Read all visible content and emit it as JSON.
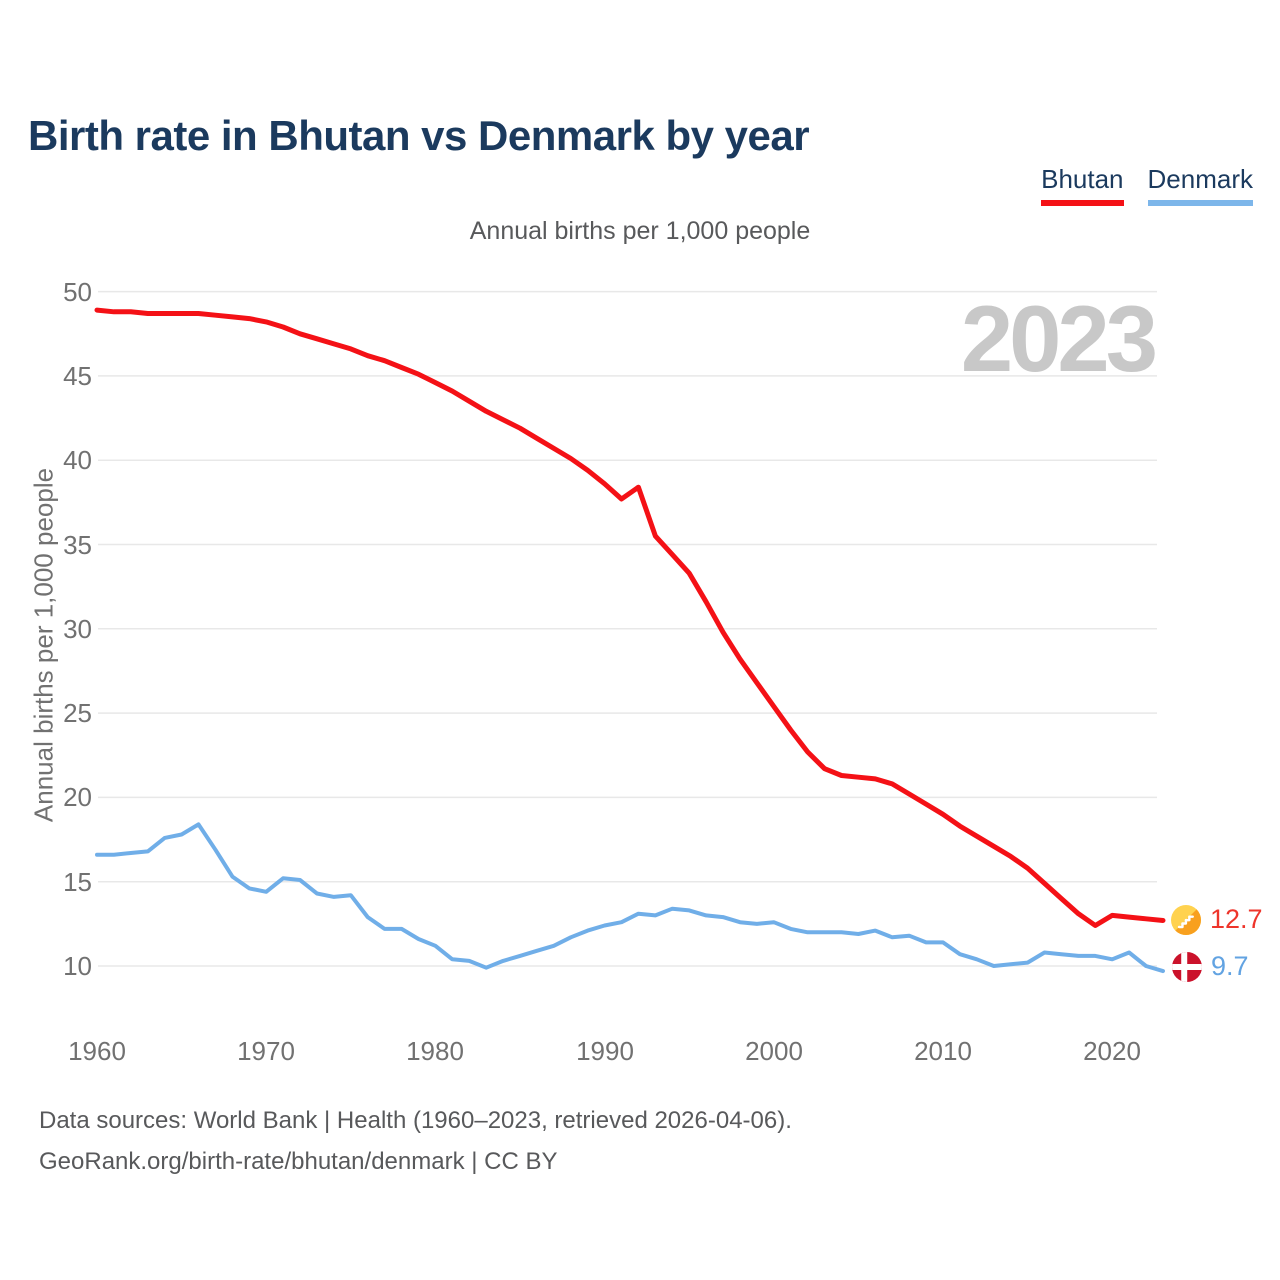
{
  "title": "Birth rate in Bhutan vs Denmark by year",
  "subtitle": "Annual births per 1,000 people",
  "watermark": "2023",
  "legend": [
    {
      "label": "Bhutan",
      "color": "#f41116"
    },
    {
      "label": "Denmark",
      "color": "#7db6ea"
    }
  ],
  "y_axis": {
    "title": "Annual births per 1,000 people",
    "ticks": [
      50,
      45,
      40,
      35,
      30,
      25,
      20,
      15,
      10
    ],
    "min": 10,
    "max": 50
  },
  "x_axis": {
    "ticks": [
      1960,
      1970,
      1980,
      1990,
      2000,
      2010,
      2020
    ],
    "min": 1960,
    "max": 2023
  },
  "end_labels": [
    {
      "series": "Bhutan",
      "value": "12.7",
      "color": "#ee352b",
      "icon": "bhutan-flag-icon"
    },
    {
      "series": "Denmark",
      "value": "9.7",
      "color": "#62a3e2",
      "icon": "denmark-flag-icon"
    }
  ],
  "footer": {
    "line1": "Data sources: World Bank | Health (1960–2023, retrieved 2026-04-06).",
    "line2": "GeoRank.org/birth-rate/bhutan/denmark | CC BY"
  },
  "colors": {
    "bhutan_line": "#f41116",
    "denmark_line": "#70aee8",
    "grid": "#e8e8e8",
    "title_navy": "#1b3a5e",
    "axis_gray": "#717171",
    "flag_red": "#cb122b",
    "flag_yellow": "#ffd24f",
    "flag_orange": "#f8a01e"
  },
  "chart_data": {
    "type": "line",
    "title": "Annual births per 1,000 people",
    "xlabel": "",
    "ylabel": "Annual births per 1,000 people",
    "ylim": [
      10,
      50
    ],
    "xlim": [
      1960,
      2023
    ],
    "grid": true,
    "legend_position": "top-right",
    "x": [
      1960,
      1961,
      1962,
      1963,
      1964,
      1965,
      1966,
      1967,
      1968,
      1969,
      1970,
      1971,
      1972,
      1973,
      1974,
      1975,
      1976,
      1977,
      1978,
      1979,
      1980,
      1981,
      1982,
      1983,
      1984,
      1985,
      1986,
      1987,
      1988,
      1989,
      1990,
      1991,
      1992,
      1993,
      1994,
      1995,
      1996,
      1997,
      1998,
      1999,
      2000,
      2001,
      2002,
      2003,
      2004,
      2005,
      2006,
      2007,
      2008,
      2009,
      2010,
      2011,
      2012,
      2013,
      2014,
      2015,
      2016,
      2017,
      2018,
      2019,
      2020,
      2021,
      2022,
      2023
    ],
    "series": [
      {
        "name": "Bhutan",
        "color": "#f41116",
        "values": [
          48.9,
          48.8,
          48.8,
          48.7,
          48.7,
          48.7,
          48.7,
          48.6,
          48.5,
          48.4,
          48.2,
          47.9,
          47.5,
          47.2,
          46.9,
          46.6,
          46.2,
          45.9,
          45.5,
          45.1,
          44.6,
          44.1,
          43.5,
          42.9,
          42.4,
          41.9,
          41.3,
          40.7,
          40.1,
          39.4,
          38.6,
          37.7,
          38.4,
          35.5,
          34.4,
          33.3,
          31.6,
          29.8,
          28.2,
          26.8,
          25.4,
          24.0,
          22.7,
          21.7,
          21.3,
          21.2,
          21.1,
          20.8,
          20.2,
          19.6,
          19.0,
          18.3,
          17.7,
          17.1,
          16.5,
          15.8,
          14.9,
          14.0,
          13.1,
          12.4,
          13.0,
          12.9,
          12.8,
          12.7
        ]
      },
      {
        "name": "Denmark",
        "color": "#70aee8",
        "values": [
          16.6,
          16.6,
          16.7,
          16.8,
          17.6,
          17.8,
          18.4,
          16.9,
          15.3,
          14.6,
          14.4,
          15.2,
          15.1,
          14.3,
          14.1,
          14.2,
          12.9,
          12.2,
          12.2,
          11.6,
          11.2,
          10.4,
          10.3,
          9.9,
          10.3,
          10.6,
          10.9,
          11.2,
          11.7,
          12.1,
          12.4,
          12.6,
          13.1,
          13.0,
          13.4,
          13.3,
          13.0,
          12.9,
          12.6,
          12.5,
          12.6,
          12.2,
          12.0,
          12.0,
          12.0,
          11.9,
          12.1,
          11.7,
          11.8,
          11.4,
          11.4,
          10.7,
          10.4,
          10.0,
          10.1,
          10.2,
          10.8,
          10.7,
          10.6,
          10.6,
          10.4,
          10.8,
          10.0,
          9.7
        ]
      }
    ]
  }
}
